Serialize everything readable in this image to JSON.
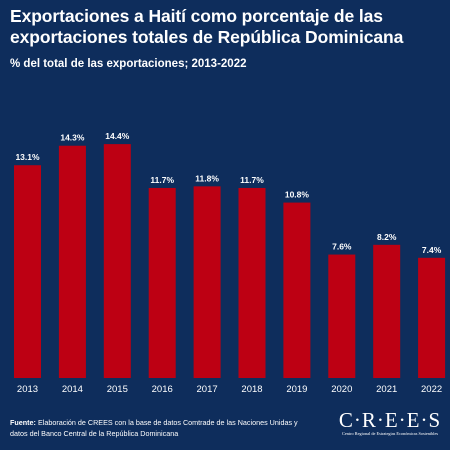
{
  "header": {
    "title": "Exportaciones a Haití como porcentaje de las exportaciones totales de República Dominicana",
    "subtitle": "% del total de las exportaciones; 2013-2022"
  },
  "chart_data": {
    "type": "bar",
    "categories": [
      "2013",
      "2014",
      "2015",
      "2016",
      "2017",
      "2018",
      "2019",
      "2020",
      "2021",
      "2022"
    ],
    "values": [
      13.1,
      14.3,
      14.4,
      11.7,
      11.8,
      11.7,
      10.8,
      7.6,
      8.2,
      7.4
    ],
    "data_labels": [
      "13.1%",
      "14.3%",
      "14.4%",
      "11.7%",
      "11.8%",
      "11.7%",
      "10.8%",
      "7.6%",
      "8.2%",
      "7.4%"
    ],
    "ylim": [
      0,
      16.5
    ],
    "grid": false,
    "bar_color": "#bd0013"
  },
  "footer": {
    "source_label": "Fuente:",
    "source_text": " Elaboración de CREES con la base de datos Comtrade de las Naciones Unidas y datos del Banco Central de la República Dominicana",
    "logo_text": "CREES",
    "logo_subtext": "Centro Regional de Estrategias Económicas Sostenibles"
  },
  "colors": {
    "background": "#0e2d5c",
    "text": "#ffffff",
    "bar": "#bd0013"
  }
}
